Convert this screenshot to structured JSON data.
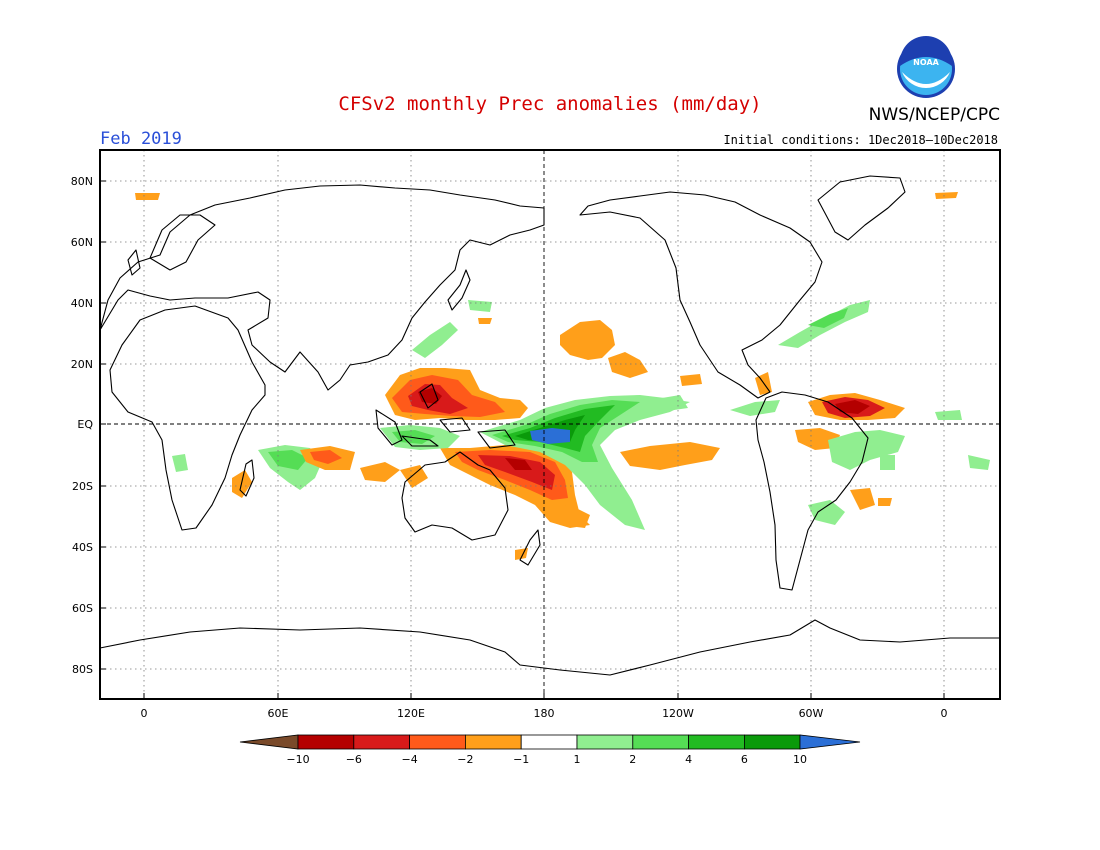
{
  "header": {
    "title": "CFSv2 monthly Prec anomalies (mm/day)",
    "period": "Feb 2019",
    "initial_conditions": "Initial conditions: 1Dec2018—10Dec2018",
    "org": "NWS/NCEP/CPC",
    "logo_text": "NOAA"
  },
  "axes": {
    "lat_labels": [
      "80N",
      "60N",
      "40N",
      "20N",
      "EQ",
      "20S",
      "40S",
      "60S",
      "80S"
    ],
    "lon_labels": [
      "0",
      "60E",
      "120E",
      "180",
      "120W",
      "60W",
      "0"
    ]
  },
  "colorbar": {
    "labels": [
      "−10",
      "−6",
      "−4",
      "−2",
      "−1",
      "1",
      "2",
      "4",
      "6",
      "10"
    ],
    "colors": {
      "lt_m10": "#7a4a2a",
      "m10_m6": "#b40000",
      "m6_m4": "#d81a1a",
      "m4_m2": "#ff5a1a",
      "m2_m1": "#ff9f1a",
      "m1_1": "#ffffff",
      "p1_2": "#90ee90",
      "p2_4": "#55dd55",
      "p4_6": "#22bb22",
      "p6_10": "#0a9a0a",
      "gt_10": "#2b6fd6"
    }
  },
  "anomaly_classes": {
    "dark_red": "#b40000",
    "red": "#d81a1a",
    "orange_red": "#ff5a1a",
    "orange": "#ff9f1a",
    "light_green": "#90ee90",
    "green": "#55dd55",
    "dark_green": "#22bb22",
    "deep_green": "#0a9a0a",
    "blue": "#2b6fd6"
  }
}
